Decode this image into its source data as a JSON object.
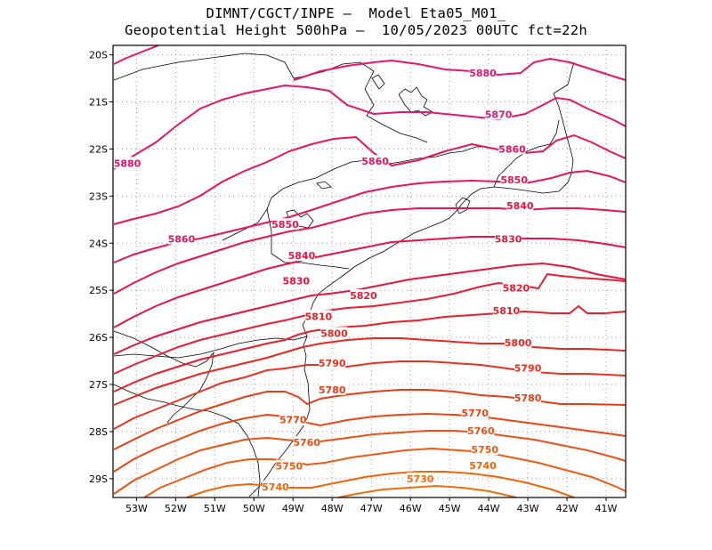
{
  "header": {
    "line1": "DIMNT/CGCT/INPE –  Model Eta05_M01_",
    "line2": "Geopotential Height 500hPa –  10/05/2023 00UTC fct=22h"
  },
  "map": {
    "lon_range": [
      -53.6,
      -40.5
    ],
    "lat_range": [
      -29.4,
      -19.8
    ],
    "lon_ticks": [
      {
        "value": -53,
        "label": "53W"
      },
      {
        "value": -52,
        "label": "52W"
      },
      {
        "value": -51,
        "label": "51W"
      },
      {
        "value": -50,
        "label": "50W"
      },
      {
        "value": -49,
        "label": "49W"
      },
      {
        "value": -48,
        "label": "48W"
      },
      {
        "value": -47,
        "label": "47W"
      },
      {
        "value": -46,
        "label": "46W"
      },
      {
        "value": -45,
        "label": "45W"
      },
      {
        "value": -44,
        "label": "44W"
      },
      {
        "value": -43,
        "label": "43W"
      },
      {
        "value": -42,
        "label": "42W"
      },
      {
        "value": -41,
        "label": "41W"
      }
    ],
    "lat_ticks": [
      {
        "value": -20,
        "label": "20S"
      },
      {
        "value": -21,
        "label": "21S"
      },
      {
        "value": -22,
        "label": "22S"
      },
      {
        "value": -23,
        "label": "23S"
      },
      {
        "value": -24,
        "label": "24S"
      },
      {
        "value": -25,
        "label": "25S"
      },
      {
        "value": -26,
        "label": "26S"
      },
      {
        "value": -27,
        "label": "27S"
      },
      {
        "value": -28,
        "label": "28S"
      },
      {
        "value": -29,
        "label": "29S"
      }
    ],
    "contour_labels": [
      {
        "text": "5880",
        "lon": -44.15,
        "lat": -20.4,
        "color": "#e8146e"
      },
      {
        "text": "5880",
        "lon": -53.4,
        "lat": -22.32,
        "color": "#e8146e"
      },
      {
        "text": "5870",
        "lon": -43.75,
        "lat": -21.28,
        "color": "#e8146e"
      },
      {
        "text": "5860",
        "lon": -46.9,
        "lat": -22.28,
        "color": "#e8145a"
      },
      {
        "text": "5860",
        "lon": -43.4,
        "lat": -22.02,
        "color": "#e8145a"
      },
      {
        "text": "5860",
        "lon": -51.85,
        "lat": -23.93,
        "color": "#e8145a"
      },
      {
        "text": "5850",
        "lon": -49.2,
        "lat": -23.62,
        "color": "#e81450"
      },
      {
        "text": "5850",
        "lon": -43.35,
        "lat": -22.67,
        "color": "#e81450"
      },
      {
        "text": "5840",
        "lon": -48.78,
        "lat": -24.28,
        "color": "#e81446"
      },
      {
        "text": "5840",
        "lon": -43.2,
        "lat": -23.22,
        "color": "#e81446"
      },
      {
        "text": "5830",
        "lon": -48.92,
        "lat": -24.82,
        "color": "#e8143c"
      },
      {
        "text": "5830",
        "lon": -43.5,
        "lat": -23.93,
        "color": "#e8143c"
      },
      {
        "text": "5820",
        "lon": -47.2,
        "lat": -25.13,
        "color": "#e81e32"
      },
      {
        "text": "5820",
        "lon": -43.3,
        "lat": -24.97,
        "color": "#e81e32"
      },
      {
        "text": "5810",
        "lon": -48.35,
        "lat": -25.57,
        "color": "#e81e28"
      },
      {
        "text": "5810",
        "lon": -43.55,
        "lat": -25.45,
        "color": "#e81e28"
      },
      {
        "text": "5800",
        "lon": -47.95,
        "lat": -25.93,
        "color": "#e8281e"
      },
      {
        "text": "5800",
        "lon": -43.25,
        "lat": -26.13,
        "color": "#e8281e"
      },
      {
        "text": "5790",
        "lon": -48.0,
        "lat": -26.57,
        "color": "#e8321e"
      },
      {
        "text": "5790",
        "lon": -43.0,
        "lat": -26.67,
        "color": "#e8321e"
      },
      {
        "text": "5780",
        "lon": -48.0,
        "lat": -27.13,
        "color": "#e83c14"
      },
      {
        "text": "5780",
        "lon": -43.0,
        "lat": -27.3,
        "color": "#e83c14"
      },
      {
        "text": "5770",
        "lon": -49.0,
        "lat": -27.77,
        "color": "#ea4614"
      },
      {
        "text": "5770",
        "lon": -44.35,
        "lat": -27.62,
        "color": "#ea4614"
      },
      {
        "text": "5760",
        "lon": -48.65,
        "lat": -28.25,
        "color": "#ec5014"
      },
      {
        "text": "5760",
        "lon": -44.2,
        "lat": -28.0,
        "color": "#ec5014"
      },
      {
        "text": "5750",
        "lon": -49.1,
        "lat": -28.75,
        "color": "#ee5a14"
      },
      {
        "text": "5750",
        "lon": -44.1,
        "lat": -28.4,
        "color": "#ee5a14"
      },
      {
        "text": "5740",
        "lon": -49.45,
        "lat": -29.19,
        "color": "#f0640a"
      },
      {
        "text": "5740",
        "lon": -44.15,
        "lat": -28.74,
        "color": "#f0640a"
      },
      {
        "text": "5730",
        "lon": -45.75,
        "lat": -29.02,
        "color": "#f06e0a"
      }
    ]
  }
}
